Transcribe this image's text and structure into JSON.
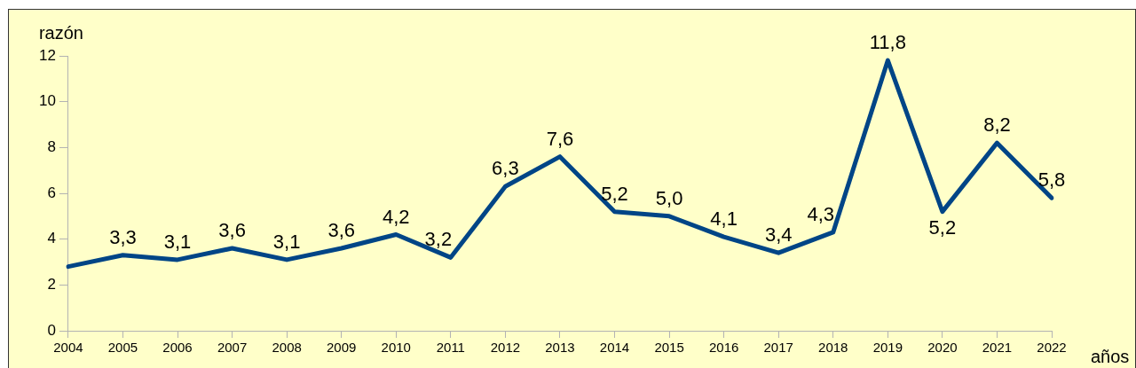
{
  "chart_data": {
    "type": "line",
    "xlabel": "años",
    "ylabel": "razón",
    "categories": [
      "2004",
      "2005",
      "2006",
      "2007",
      "2008",
      "2009",
      "2010",
      "2011",
      "2012",
      "2013",
      "2014",
      "2015",
      "2016",
      "2017",
      "2018",
      "2019",
      "2020",
      "2021",
      "2022"
    ],
    "series": [
      {
        "color": "#004586",
        "values": [
          2.8,
          3.3,
          3.1,
          3.6,
          3.1,
          3.6,
          4.2,
          3.2,
          6.3,
          7.6,
          5.2,
          5.0,
          4.1,
          3.4,
          4.3,
          11.8,
          5.2,
          8.2,
          5.8
        ],
        "value_labels": [
          null,
          "3,3",
          "3,1",
          "3,6",
          "3,1",
          "3,6",
          "4,2",
          "3,2",
          "6,3",
          "7,6",
          "5,2",
          "5,0",
          "4,1",
          "3,4",
          "4,3",
          "11,8",
          "5,2",
          "8,2",
          "5,8"
        ]
      }
    ],
    "ylim": [
      0,
      12
    ],
    "yticks": [
      0,
      2,
      4,
      6,
      8,
      10,
      12
    ],
    "grid": false,
    "legend": false,
    "marker": "none",
    "line_style": "solid"
  }
}
